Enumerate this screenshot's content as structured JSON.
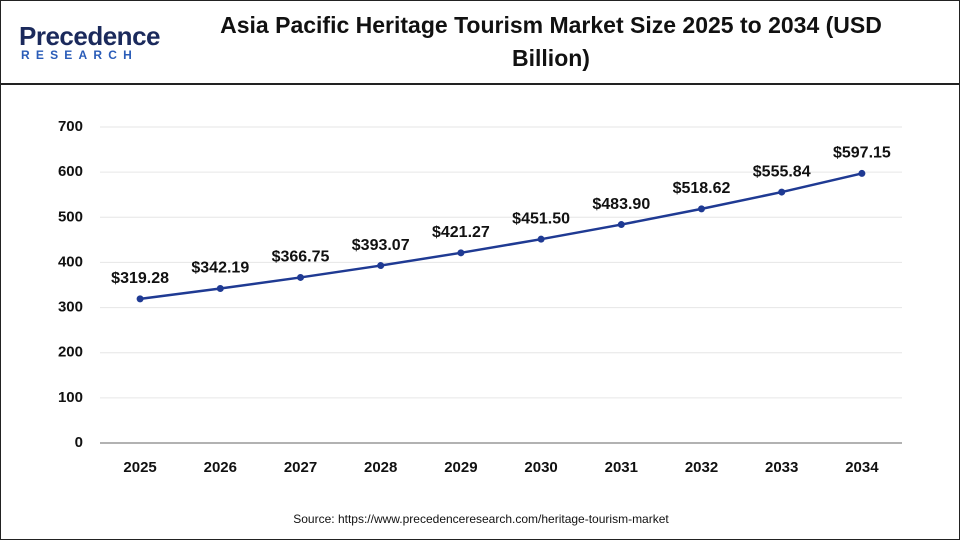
{
  "logo": {
    "name": "Precedence",
    "tagline": "RESEARCH"
  },
  "chart_data": {
    "type": "line",
    "title": "Asia Pacific Heritage Tourism Market Size 2025 to 2034 (USD Billion)",
    "categories": [
      "2025",
      "2026",
      "2027",
      "2028",
      "2029",
      "2030",
      "2031",
      "2032",
      "2033",
      "2034"
    ],
    "values": [
      319.28,
      342.19,
      366.75,
      393.07,
      421.27,
      451.5,
      483.9,
      518.62,
      555.84,
      597.15
    ],
    "value_labels": [
      "$319.28",
      "$342.19",
      "$366.75",
      "$393.07",
      "$421.27",
      "$451.50",
      "$483.90",
      "$518.62",
      "$555.84",
      "$597.15"
    ],
    "color": "#1f3a93",
    "ylim": [
      0,
      700
    ],
    "yticks": [
      0,
      100,
      200,
      300,
      400,
      500,
      600,
      700
    ],
    "grid": true,
    "source": "Source: https://www.precedenceresearch.com/heritage-tourism-market"
  }
}
